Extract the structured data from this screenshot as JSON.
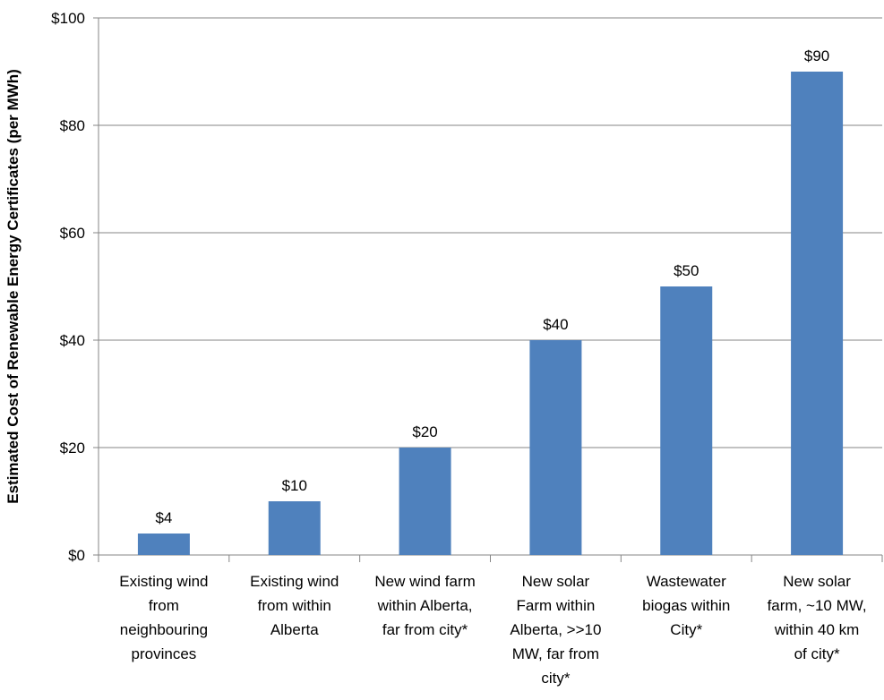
{
  "chart_data": {
    "type": "bar",
    "categories": [
      "Existing wind from neighbouring provinces",
      "Existing wind from within Alberta",
      "New wind farm within Alberta, far from city*",
      "New solar Farm within Alberta, >>10 MW, far from city*",
      "Wastewater biogas within City*",
      "New solar farm, ~10 MW, within 40 km of city*"
    ],
    "category_lines": [
      [
        "Existing wind",
        "from",
        "neighbouring",
        "provinces"
      ],
      [
        "Existing wind",
        "from within",
        "Alberta"
      ],
      [
        "New wind farm",
        "within Alberta,",
        "far from city*"
      ],
      [
        "New solar",
        "Farm within",
        "Alberta, >>10",
        "MW, far from",
        "city*"
      ],
      [
        "Wastewater",
        "biogas within",
        "City*"
      ],
      [
        "New solar",
        "farm, ~10 MW,",
        "within 40 km",
        "of city*"
      ]
    ],
    "values": [
      4,
      10,
      20,
      40,
      50,
      90
    ],
    "data_labels": [
      "$4",
      "$10",
      "$20",
      "$40",
      "$50",
      "$90"
    ],
    "title": "",
    "xlabel": "",
    "ylabel": "Estimated Cost of Renewable Energy Certificates (per MWh)",
    "ylim": [
      0,
      100
    ],
    "yticks": [
      0,
      20,
      40,
      60,
      80,
      100
    ],
    "ytick_labels": [
      "$0",
      "$20",
      "$40",
      "$60",
      "$80",
      "$100"
    ],
    "grid": true,
    "legend": "none",
    "colors": {
      "bar": "#4f81bd",
      "grid": "#868686",
      "axis": "#868686",
      "text": "#000000"
    }
  }
}
